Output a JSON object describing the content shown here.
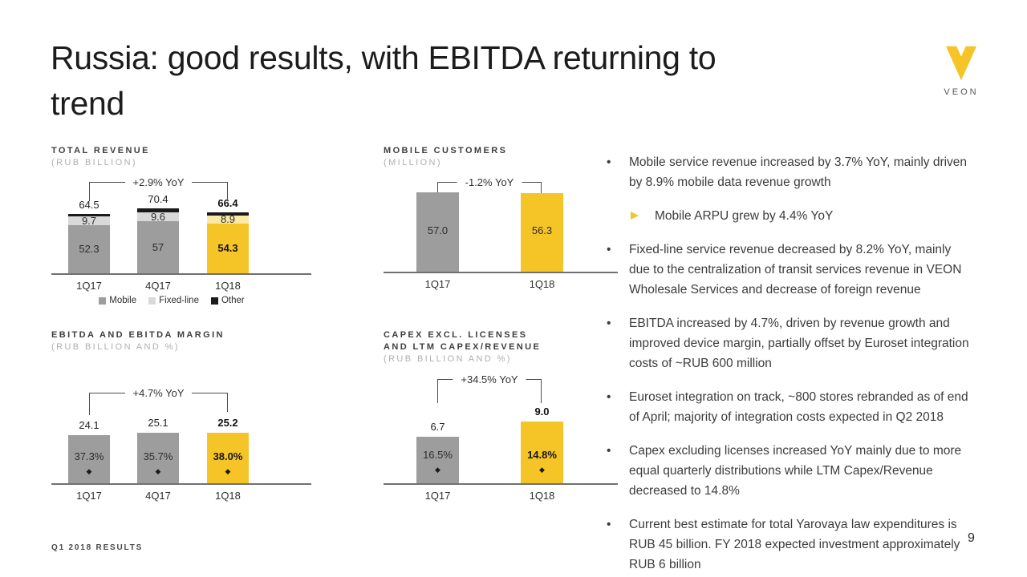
{
  "slide": {
    "title": "Russia: good results, with EBITDA returning to\ntrend",
    "footer": "Q1 2018 RESULTS",
    "page_number": "9",
    "logo_text": "VEON"
  },
  "colors": {
    "accent_yellow": "#f5c426",
    "pale_yellow": "#fbe9a6",
    "bar_gray": "#9d9d9d",
    "light_gray": "#d9d9d9",
    "black": "#1a1a1a"
  },
  "bullets": [
    {
      "level": 1,
      "text": "Mobile service revenue increased by 3.7% YoY, mainly driven by 8.9% mobile data revenue growth"
    },
    {
      "level": 2,
      "text": "Mobile ARPU grew by 4.4% YoY"
    },
    {
      "level": 1,
      "text": "Fixed-line service revenue decreased by 8.2% YoY, mainly due to the centralization of transit services revenue in VEON Wholesale Services and decrease of foreign revenue"
    },
    {
      "level": 1,
      "text": "EBITDA increased by 4.7%, driven by revenue growth and improved device margin, partially offset by Euroset integration costs of ~RUB 600 million"
    },
    {
      "level": 1,
      "text": "Euroset integration on track, ~800 stores rebranded as of end of April; majority of integration costs expected in Q2 2018"
    },
    {
      "level": 1,
      "text": "Capex excluding licenses increased YoY mainly due to more equal quarterly distributions while LTM Capex/Revenue decreased to 14.8%"
    },
    {
      "level": 1,
      "text": "Current best estimate for total Yarovaya law expenditures is RUB 45 billion. FY 2018 expected investment approximately RUB 6 billion"
    }
  ],
  "chart_data": [
    {
      "id": "total-revenue",
      "type": "stacked-bar",
      "title": "TOTAL REVENUE",
      "subtitle": "(RUB BILLION)",
      "categories": [
        "1Q17",
        "4Q17",
        "1Q18"
      ],
      "series": [
        {
          "name": "Mobile",
          "values": [
            52.3,
            57,
            54.3
          ],
          "labels": [
            "52.3",
            "57",
            "54.3"
          ],
          "colors": [
            "#9d9d9d",
            "#9d9d9d",
            "#f5c426"
          ]
        },
        {
          "name": "Fixed-line",
          "values": [
            9.7,
            9.6,
            8.9
          ],
          "labels": [
            "9.7",
            "9.6",
            "8.9"
          ],
          "colors": [
            "#d9d9d9",
            "#d9d9d9",
            "#fbe9a6"
          ]
        },
        {
          "name": "Other",
          "values": [
            2.5,
            3.8,
            3.2
          ],
          "labels": [
            "",
            "",
            ""
          ],
          "colors": [
            "#1a1a1a",
            "#1a1a1a",
            "#1a1a1a"
          ]
        }
      ],
      "totals": [
        "64.5",
        "70.4",
        "66.4"
      ],
      "annotation": "+2.9% YoY",
      "ylim": [
        0,
        96
      ],
      "emphasis_index": 2,
      "legend": [
        {
          "label": "Mobile",
          "color": "#9d9d9d"
        },
        {
          "label": "Fixed-line",
          "color": "#d9d9d9"
        },
        {
          "label": "Other",
          "color": "#1a1a1a"
        }
      ]
    },
    {
      "id": "mobile-customers",
      "type": "bar",
      "title": "MOBILE CUSTOMERS",
      "subtitle": "(MILLION)",
      "categories": [
        "1Q17",
        "1Q18"
      ],
      "values": [
        57.0,
        56.3
      ],
      "bar_labels": [
        "57.0",
        "56.3"
      ],
      "bar_label_position": "inside",
      "annotation": "-1.2% YoY",
      "ylim": [
        0,
        66
      ],
      "emphasis_index": 1,
      "colors": [
        "#9d9d9d",
        "#f5c426"
      ]
    },
    {
      "id": "ebitda",
      "type": "bar",
      "title": "EBITDA AND EBITDA MARGIN",
      "subtitle": "(RUB BILLION AND %)",
      "categories": [
        "1Q17",
        "4Q17",
        "1Q18"
      ],
      "values": [
        24.1,
        25.1,
        25.2
      ],
      "bar_labels": [
        "24.1",
        "25.1",
        "25.2"
      ],
      "bar_label_position": "above",
      "inner_labels": [
        "37.3%",
        "35.7%",
        "38.0%"
      ],
      "markers": true,
      "annotation": "+4.7% YoY",
      "ylim": [
        0,
        30
      ],
      "emphasis_index": 2,
      "colors": [
        "#9d9d9d",
        "#9d9d9d",
        "#f5c426"
      ]
    },
    {
      "id": "capex",
      "type": "bar",
      "title": "CAPEX EXCL. LICENSES\nAND LTM CAPEX/REVENUE",
      "subtitle": "(RUB BILLION AND %)",
      "categories": [
        "1Q17",
        "1Q18"
      ],
      "values": [
        6.7,
        9.0
      ],
      "bar_labels": [
        "6.7",
        "9.0"
      ],
      "bar_label_position": "above",
      "inner_labels": [
        "16.5%",
        "14.8%"
      ],
      "markers": true,
      "annotation": "+34.5% YoY",
      "ylim": [
        0,
        9.3
      ],
      "emphasis_index": 1,
      "colors": [
        "#9d9d9d",
        "#f5c426"
      ]
    }
  ]
}
